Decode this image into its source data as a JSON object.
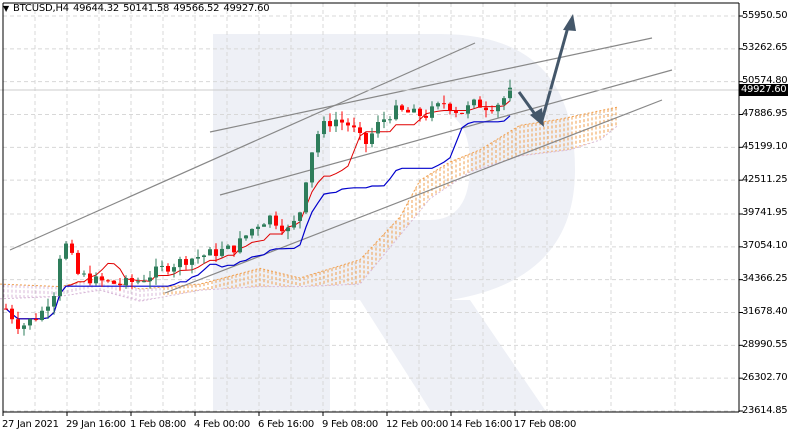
{
  "header": {
    "symbol": "BTCUSD,H4",
    "open": "49644.32",
    "high": "50141.58",
    "low": "49566.52",
    "close": "49927.60"
  },
  "price_axis": {
    "labels": [
      "55950.50",
      "53262.65",
      "50574.80",
      "47886.95",
      "45199.10",
      "42511.25",
      "39741.95",
      "37054.10",
      "34366.25",
      "31678.40",
      "28990.55",
      "26302.70",
      "23614.85"
    ],
    "current_price": "49927.60"
  },
  "time_axis": {
    "labels": [
      "27 Jan 2021",
      "29 Jan 16:00",
      "1 Feb 08:00",
      "4 Feb 00:00",
      "6 Feb 16:00",
      "9 Feb 08:00",
      "12 Feb 00:00",
      "14 Feb 16:00",
      "17 Feb 08:00"
    ]
  },
  "colors": {
    "bull_candle": "#2e7d5b",
    "bear_candle": "#ff0000",
    "tenkan": "#e00000",
    "kijun": "#0000cc",
    "cloud_orange": "#f0a050",
    "cloud_violet": "#d8b8d8",
    "trendline": "#888888",
    "arrow": "#44576a",
    "grid": "#d8d8d8",
    "watermark": "#eef0f6"
  },
  "chart_data": {
    "type": "candlestick",
    "title": "BTCUSD, H4",
    "instrument": "BTCUSD",
    "timeframe": "H4",
    "ohlc_header": {
      "open": 49644.32,
      "high": 50141.58,
      "low": 49566.52,
      "close": 49927.6
    },
    "ylim": [
      23614.85,
      57300
    ],
    "y_ticks": [
      55950.5,
      53262.65,
      50574.8,
      47886.95,
      45199.1,
      42511.25,
      39741.95,
      37054.1,
      34366.25,
      31678.4,
      28990.55,
      26302.7,
      23614.85
    ],
    "x_ticks": [
      "27 Jan 2021",
      "29 Jan 16:00",
      "1 Feb 08:00",
      "4 Feb 00:00",
      "6 Feb 16:00",
      "9 Feb 08:00",
      "12 Feb 00:00",
      "14 Feb 16:00",
      "17 Feb 08:00"
    ],
    "grid": true,
    "indicators": [
      "Ichimoku Kinko Hyo (Tenkan-sen red, Kijun-sen blue, cloud orange/violet hatched)"
    ],
    "annotations": [
      "Ascending channel (gray trendlines)",
      "Arrow down to cloud at ~47200 then arrow up to ~56000 target"
    ],
    "approx_close_path": [
      {
        "x": "27 Jan 2021",
        "close": 31000
      },
      {
        "x": "29 Jan 00:00",
        "close": 37500
      },
      {
        "x": "29 Jan 16:00",
        "close": 34500
      },
      {
        "x": "1 Feb 08:00",
        "close": 34200
      },
      {
        "x": "4 Feb 00:00",
        "close": 37500
      },
      {
        "x": "6 Feb 16:00",
        "close": 38500
      },
      {
        "x": "8 Feb 12:00",
        "close": 46500
      },
      {
        "x": "9 Feb 08:00",
        "close": 46800
      },
      {
        "x": "11 Feb 00:00",
        "close": 47500
      },
      {
        "x": "12 Feb 00:00",
        "close": 47800
      },
      {
        "x": "14 Feb 16:00",
        "close": 48800
      },
      {
        "x": "17 Feb 08:00",
        "close": 49927.6
      }
    ]
  }
}
